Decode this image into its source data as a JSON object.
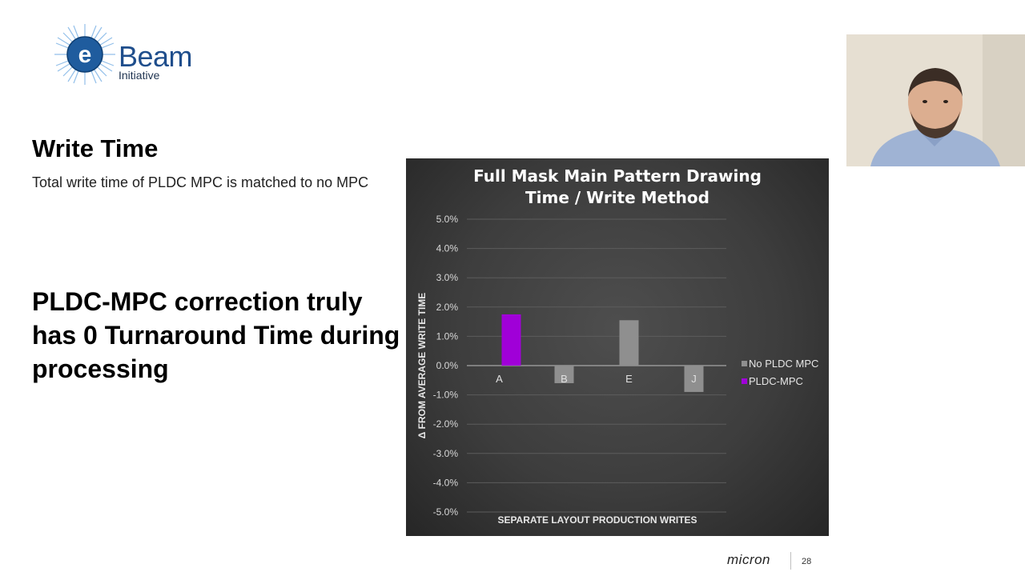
{
  "logo": {
    "name": "Beam",
    "sub": "Initiative"
  },
  "slide": {
    "title": "Write Time",
    "subtitle": "Total write time of PLDC MPC is matched to no MPC",
    "callout": "PLDC-MPC correction truly has 0 Turnaround Time during processing"
  },
  "chart_data": {
    "type": "bar",
    "title": [
      "Full Mask Main Pattern Drawing",
      "Time / Write Method"
    ],
    "xlabel": "SEPARATE LAYOUT PRODUCTION WRITES",
    "ylabel": "Δ FROM AVERAGE WRITE TIME",
    "categories": [
      "A",
      "B",
      "E",
      "J"
    ],
    "series": [
      {
        "name": "No PLDC MPC",
        "color": "#8f8f8f",
        "values": [
          null,
          -0.6,
          1.55,
          -0.9
        ]
      },
      {
        "name": "PLDC-MPC",
        "color": "#a000d8",
        "values": [
          1.75,
          null,
          null,
          null
        ]
      }
    ],
    "ylim": [
      -5.0,
      5.0
    ],
    "yticks": [
      5.0,
      4.0,
      3.0,
      2.0,
      1.0,
      0.0,
      -1.0,
      -2.0,
      -3.0,
      -4.0,
      -5.0
    ],
    "ytick_labels": [
      "5.0%",
      "4.0%",
      "3.0%",
      "2.0%",
      "1.0%",
      "0.0%",
      "-1.0%",
      "-2.0%",
      "-3.0%",
      "-4.0%",
      "-5.0%"
    ],
    "grid": true,
    "legend": "right"
  },
  "footer": {
    "brand": "micron",
    "page": "28"
  },
  "icons": {
    "logo": "ebeam-logo-icon",
    "person": "presenter-video"
  }
}
